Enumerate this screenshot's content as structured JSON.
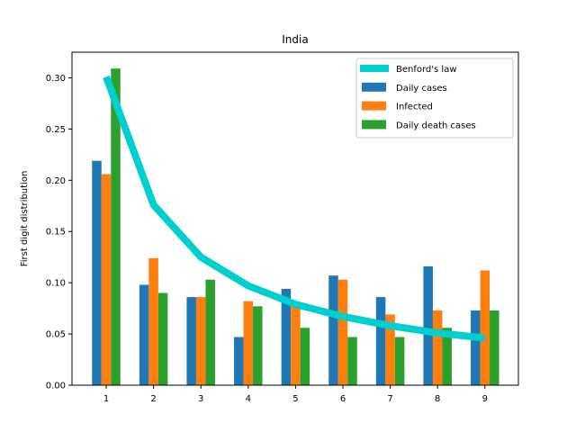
{
  "chart_data": {
    "type": "bar",
    "title": "India",
    "xlabel": "",
    "ylabel": "First digit distribution",
    "categories": [
      "1",
      "2",
      "3",
      "4",
      "5",
      "6",
      "7",
      "8",
      "9"
    ],
    "series": [
      {
        "name": "Daily cases",
        "color": "#1f77b4",
        "values": [
          0.219,
          0.098,
          0.086,
          0.047,
          0.094,
          0.107,
          0.086,
          0.116,
          0.073
        ]
      },
      {
        "name": "Infected",
        "color": "#ff7f0e",
        "values": [
          0.206,
          0.124,
          0.086,
          0.082,
          0.077,
          0.103,
          0.069,
          0.073,
          0.112
        ]
      },
      {
        "name": "Daily death cases",
        "color": "#2ca02c",
        "values": [
          0.309,
          0.09,
          0.103,
          0.077,
          0.056,
          0.047,
          0.047,
          0.056,
          0.073
        ]
      }
    ],
    "line": {
      "name": "Benford's law",
      "color": "#00cfcf",
      "values": [
        0.301,
        0.176,
        0.125,
        0.097,
        0.079,
        0.067,
        0.058,
        0.051,
        0.046
      ]
    },
    "ylim": [
      0,
      0.325
    ],
    "yticks": [
      "0.00",
      "0.05",
      "0.10",
      "0.15",
      "0.20",
      "0.25",
      "0.30"
    ],
    "legend_position": "top-right",
    "grid": false
  }
}
